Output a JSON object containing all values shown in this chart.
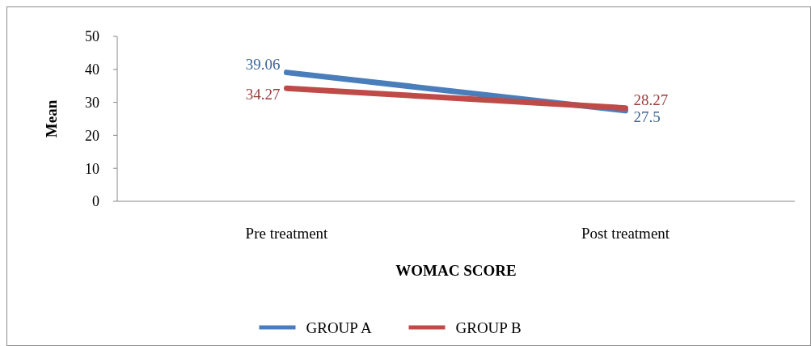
{
  "chart_data": {
    "type": "line",
    "xlabel": "WOMAC SCORE",
    "ylabel": "Mean",
    "categories": [
      "Pre treatment",
      "Post treatment"
    ],
    "series": [
      {
        "name": "GROUP A",
        "color": "#4a7ebb",
        "values": [
          39.06,
          27.5
        ]
      },
      {
        "name": "GROUP B",
        "color": "#be4b48",
        "values": [
          34.27,
          28.27
        ]
      }
    ],
    "ylim": [
      0,
      50
    ],
    "yticks": [
      0,
      10,
      20,
      30,
      40,
      50
    ],
    "grid": false,
    "legend": "bottom",
    "data_labels": true,
    "marker": "none",
    "line_style": "solid"
  }
}
